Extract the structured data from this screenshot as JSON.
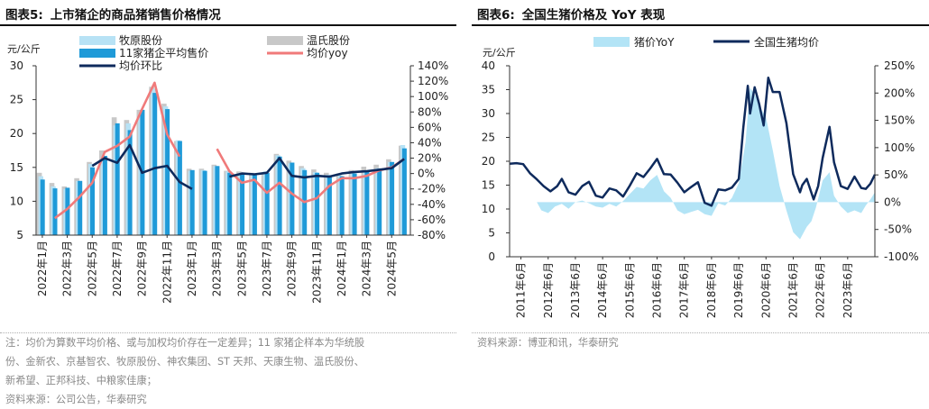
{
  "left_panel": {
    "figure_label": "图表5:",
    "title": "上市猪企的商品猪销售价格情况",
    "notes": [
      "注：均价为算数平均价格、或与加权均价存在一定差异；11 家猪企样本为华统股",
      "份、金新农、京基智农、牧原股份、神农集团、ST 天邦、天康生物、温氏股份、",
      "新希望、正邦科技、中粮家佳康；",
      "资料来源：公司公告，华泰研究"
    ]
  },
  "right_panel": {
    "figure_label": "图表6:",
    "title": "全国生猪价格及 YoY 表现",
    "source": "资料来源：博亚和讯，华泰研究"
  },
  "chart_data": [
    {
      "type": "bar",
      "y_unit": "元/公斤",
      "ylim_left": [
        5,
        30
      ],
      "yticks_left": [
        5,
        10,
        15,
        20,
        25,
        30
      ],
      "ylim_right": [
        -80,
        140
      ],
      "yticks_right_labels": [
        "-80%",
        "-60%",
        "-40%",
        "-20%",
        "0%",
        "20%",
        "40%",
        "60%",
        "80%",
        "100%",
        "120%",
        "140%"
      ],
      "x_tick_labels": [
        "2022年1月",
        "2022年3月",
        "2022年5月",
        "2022年7月",
        "2022年9月",
        "2022年11月",
        "2023年1月",
        "2023年3月",
        "2023年5月",
        "2023年7月",
        "2023年9月",
        "2023年11月",
        "2024年1月",
        "2024年3月",
        "2024年5月"
      ],
      "months": [
        "2022-01",
        "2022-02",
        "2022-03",
        "2022-04",
        "2022-05",
        "2022-06",
        "2022-07",
        "2022-08",
        "2022-09",
        "2022-10",
        "2022-11",
        "2022-12",
        "2023-01",
        "2023-02",
        "2023-03",
        "2023-04",
        "2023-05",
        "2023-06",
        "2023-07",
        "2023-08",
        "2023-09",
        "2023-10",
        "2023-11",
        "2023-12",
        "2024-01",
        "2024-02",
        "2024-03",
        "2024-04",
        "2024-05",
        "2024-06"
      ],
      "series": [
        {
          "name": "牧原股份",
          "kind": "bar",
          "axis": "left",
          "color": "#b7e2f5",
          "values": [
            13.7,
            12.2,
            11.8,
            13.0,
            15.5,
            15.9,
            21.2,
            21.5,
            22.9,
            26.6,
            24.0,
            19.0,
            14.5,
            14.6,
            15.2,
            14.4,
            14.2,
            14.0,
            14.4,
            16.8,
            15.6,
            14.9,
            14.3,
            13.9,
            13.8,
            14.2,
            14.5,
            14.9,
            15.8,
            18.3
          ]
        },
        {
          "name": "温氏股份",
          "kind": "bar",
          "axis": "left",
          "color": "#c8c8c8",
          "values": [
            14.2,
            12.7,
            12.2,
            13.4,
            15.8,
            17.5,
            22.4,
            22.0,
            23.5,
            26.9,
            24.4,
            18.9,
            14.8,
            14.8,
            15.4,
            14.5,
            14.4,
            14.2,
            14.3,
            17.0,
            16.0,
            15.2,
            14.7,
            14.2,
            14.1,
            14.6,
            15.1,
            15.4,
            16.2,
            18.2
          ]
        },
        {
          "name": "11家猪企平均售价",
          "kind": "bar",
          "axis": "left",
          "color": "#1f9ad8",
          "values": [
            13.2,
            11.9,
            12.0,
            13.0,
            15.0,
            16.7,
            21.5,
            20.5,
            23.5,
            26.0,
            23.6,
            18.9,
            14.6,
            14.5,
            15.2,
            14.2,
            14.0,
            14.0,
            14.2,
            16.6,
            15.7,
            14.6,
            14.2,
            13.8,
            13.7,
            14.1,
            14.4,
            14.8,
            15.8,
            17.8
          ]
        },
        {
          "name": "均价yoy",
          "kind": "line",
          "axis": "right",
          "color": "#f07a7a",
          "values": [
            null,
            -58,
            -46,
            -30,
            -12,
            28,
            36,
            48,
            84,
            118,
            51,
            22,
            null,
            null,
            32,
            3,
            -12,
            -8,
            -25,
            -12,
            -26,
            -37,
            -32,
            -16,
            -6,
            -6,
            -3,
            4,
            8,
            19
          ]
        },
        {
          "name": "均价环比",
          "kind": "line",
          "axis": "right",
          "color": "#0e2a5c",
          "values": [
            null,
            null,
            null,
            null,
            10,
            20,
            14,
            37,
            1,
            7,
            10,
            -11,
            -20,
            null,
            null,
            -4,
            0,
            -1,
            1,
            20,
            -3,
            -5,
            -3,
            -4,
            0,
            2,
            3,
            5,
            7,
            19
          ]
        }
      ]
    },
    {
      "type": "line",
      "y_unit": "元/公斤",
      "ylim_left": [
        0,
        40
      ],
      "yticks_left": [
        0,
        5,
        10,
        15,
        20,
        25,
        30,
        35,
        40
      ],
      "ylim_right": [
        -100,
        250
      ],
      "yticks_right_labels": [
        "-100%",
        "-50%",
        "0%",
        "50%",
        "100%",
        "150%",
        "200%",
        "250%"
      ],
      "x_tick_labels": [
        "2011年6月",
        "2012年6月",
        "2013年6月",
        "2014年6月",
        "2015年6月",
        "2016年6月",
        "2017年6月",
        "2018年6月",
        "2019年6月",
        "2020年6月",
        "2021年6月",
        "2022年6月",
        "2023年6月"
      ],
      "x_range": [
        "2011-01",
        "2024-06"
      ],
      "series": [
        {
          "name": "猪价YoY",
          "kind": "area",
          "axis": "right",
          "color": "#b3e4f6",
          "points": [
            [
              "2011-01",
              0
            ],
            [
              "2012-01",
              0
            ],
            [
              "2012-03",
              -15
            ],
            [
              "2012-06",
              -20
            ],
            [
              "2012-09",
              -8
            ],
            [
              "2012-12",
              -3
            ],
            [
              "2013-03",
              -12
            ],
            [
              "2013-06",
              0
            ],
            [
              "2013-09",
              3
            ],
            [
              "2013-12",
              -2
            ],
            [
              "2014-03",
              -8
            ],
            [
              "2014-06",
              -10
            ],
            [
              "2014-09",
              -3
            ],
            [
              "2014-12",
              -8
            ],
            [
              "2015-03",
              2
            ],
            [
              "2015-06",
              15
            ],
            [
              "2015-09",
              28
            ],
            [
              "2015-12",
              25
            ],
            [
              "2016-03",
              40
            ],
            [
              "2016-06",
              50
            ],
            [
              "2016-09",
              20
            ],
            [
              "2016-12",
              8
            ],
            [
              "2017-03",
              -15
            ],
            [
              "2017-06",
              -22
            ],
            [
              "2017-09",
              -18
            ],
            [
              "2017-12",
              -14
            ],
            [
              "2018-03",
              -22
            ],
            [
              "2018-06",
              -25
            ],
            [
              "2018-09",
              -2
            ],
            [
              "2018-12",
              -6
            ],
            [
              "2019-03",
              8
            ],
            [
              "2019-06",
              35
            ],
            [
              "2019-09",
              110
            ],
            [
              "2019-11",
              210
            ],
            [
              "2020-02",
              190
            ],
            [
              "2020-04",
              170
            ],
            [
              "2020-06",
              155
            ],
            [
              "2020-09",
              95
            ],
            [
              "2020-12",
              30
            ],
            [
              "2021-03",
              -15
            ],
            [
              "2021-06",
              -55
            ],
            [
              "2021-09",
              -68
            ],
            [
              "2021-12",
              -45
            ],
            [
              "2022-02",
              -35
            ],
            [
              "2022-04",
              -10
            ],
            [
              "2022-07",
              40
            ],
            [
              "2022-10",
              55
            ],
            [
              "2022-12",
              12
            ],
            [
              "2023-03",
              -8
            ],
            [
              "2023-06",
              -20
            ],
            [
              "2023-09",
              -15
            ],
            [
              "2023-12",
              -20
            ],
            [
              "2024-02",
              -6
            ],
            [
              "2024-04",
              5
            ],
            [
              "2024-06",
              18
            ]
          ]
        },
        {
          "name": "全国生猪均价",
          "kind": "line",
          "axis": "left",
          "color": "#0e2a5c",
          "points": [
            [
              "2011-01",
              19.5
            ],
            [
              "2011-04",
              19.6
            ],
            [
              "2011-07",
              19.4
            ],
            [
              "2011-10",
              17.5
            ],
            [
              "2012-01",
              16.2
            ],
            [
              "2012-04",
              14.8
            ],
            [
              "2012-07",
              13.7
            ],
            [
              "2012-10",
              14.8
            ],
            [
              "2012-12",
              16.3
            ],
            [
              "2013-03",
              13.5
            ],
            [
              "2013-06",
              13.0
            ],
            [
              "2013-09",
              14.8
            ],
            [
              "2013-12",
              15.7
            ],
            [
              "2014-03",
              12.8
            ],
            [
              "2014-06",
              12.4
            ],
            [
              "2014-09",
              14.3
            ],
            [
              "2014-12",
              13.9
            ],
            [
              "2015-03",
              12.6
            ],
            [
              "2015-06",
              14.9
            ],
            [
              "2015-09",
              17.5
            ],
            [
              "2015-12",
              16.7
            ],
            [
              "2016-03",
              18.5
            ],
            [
              "2016-06",
              20.5
            ],
            [
              "2016-09",
              17.3
            ],
            [
              "2016-12",
              17.2
            ],
            [
              "2017-03",
              15.5
            ],
            [
              "2017-06",
              13.5
            ],
            [
              "2017-09",
              14.6
            ],
            [
              "2017-12",
              15.6
            ],
            [
              "2018-03",
              11.3
            ],
            [
              "2018-06",
              10.7
            ],
            [
              "2018-09",
              14.1
            ],
            [
              "2018-12",
              13.9
            ],
            [
              "2019-03",
              14.5
            ],
            [
              "2019-06",
              16.3
            ],
            [
              "2019-08",
              27.0
            ],
            [
              "2019-10",
              35.8
            ],
            [
              "2019-11",
              30.0
            ],
            [
              "2020-01",
              35.5
            ],
            [
              "2020-03",
              32.0
            ],
            [
              "2020-05",
              27.5
            ],
            [
              "2020-07",
              37.5
            ],
            [
              "2020-09",
              34.5
            ],
            [
              "2020-12",
              34.5
            ],
            [
              "2021-03",
              28.0
            ],
            [
              "2021-06",
              17.3
            ],
            [
              "2021-09",
              13.5
            ],
            [
              "2021-10",
              15.0
            ],
            [
              "2021-12",
              16.3
            ],
            [
              "2022-03",
              12.0
            ],
            [
              "2022-05",
              14.8
            ],
            [
              "2022-07",
              20.7
            ],
            [
              "2022-10",
              27.2
            ],
            [
              "2022-12",
              19.8
            ],
            [
              "2023-03",
              14.8
            ],
            [
              "2023-06",
              14.2
            ],
            [
              "2023-09",
              16.8
            ],
            [
              "2023-12",
              14.4
            ],
            [
              "2024-02",
              14.2
            ],
            [
              "2024-04",
              15.3
            ],
            [
              "2024-06",
              17.2
            ]
          ]
        }
      ]
    }
  ]
}
